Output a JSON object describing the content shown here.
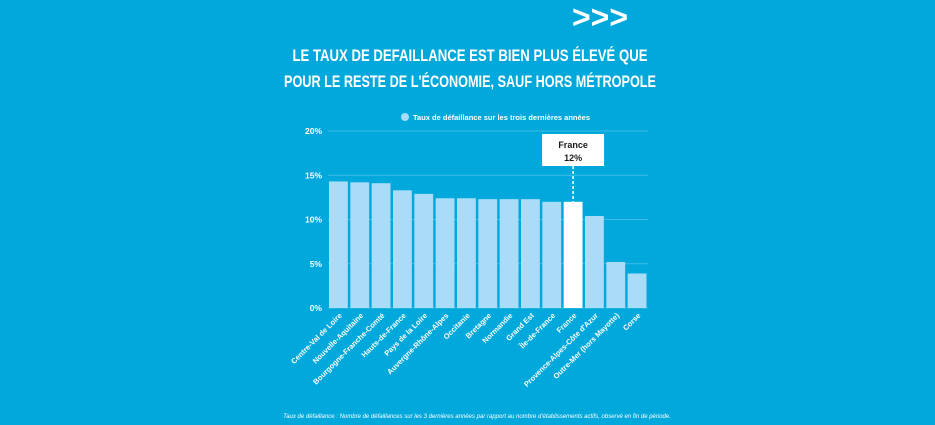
{
  "header": {
    "arrows": ">>>",
    "title_line1": "LE TAUX DE DEFAILLANCE EST BIEN PLUS ÉLEVÉ QUE",
    "title_line2": "POUR LE RESTE DE L'ÉCONOMIE, SAUF HORS MÉTROPOLE"
  },
  "colors": {
    "background": "#00a8dc",
    "bar": "#a9ddf7",
    "highlight": "#ffffff"
  },
  "chart_data": {
    "type": "bar",
    "title": "LE TAUX DE DEFAILLANCE EST BIEN PLUS ÉLEVÉ QUE POUR LE RESTE DE L'ÉCONOMIE, SAUF HORS MÉTROPOLE",
    "legend": {
      "label": "Taux de défaillance sur les trois dernières années",
      "placement": "top"
    },
    "categories": [
      "Centre-Val de Loire",
      "Nouvelle-Aquitaine",
      "Bourgogne-Franche-Comté",
      "Hauts-de-France",
      "Pays de la Loire",
      "Auvergne-Rhône-Alpes",
      "Occitanie",
      "Bretagne",
      "Normandie",
      "Grand Est",
      "Île-de-France",
      "France",
      "Provence-Alpes-Côte d'Azur",
      "Outre-Mer (hors Mayotte)",
      "Corse"
    ],
    "values": [
      14.3,
      14.2,
      14.1,
      13.3,
      12.9,
      12.4,
      12.4,
      12.3,
      12.3,
      12.3,
      12.0,
      12.0,
      10.4,
      5.2,
      3.9
    ],
    "highlight_index": 11,
    "annotation": {
      "title": "France",
      "value": "12%"
    },
    "yticks": [
      "0%",
      "5%",
      "10%",
      "15%",
      "20%"
    ],
    "ytick_values": [
      0,
      5,
      10,
      15,
      20
    ],
    "ylim": [
      0,
      20
    ],
    "grid": true,
    "xlabel": "",
    "ylabel": ""
  },
  "footnote": "Taux de défaillance : Nombre de défaillances sur les 3 dernières années par rapport au nombre d'établissements actifs, observé en fin de période."
}
